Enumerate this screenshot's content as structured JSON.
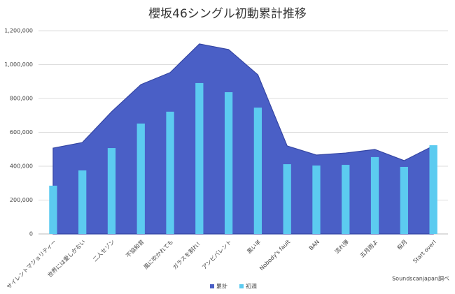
{
  "chart_data": {
    "type": "combo",
    "title": "櫻坂46シングル初動累計推移",
    "categories": [
      "サイレントマジョリティー",
      "世界には愛しかない",
      "二人セゾン",
      "不協和音",
      "風に吹かれても",
      "ガラスを割れ！",
      "アンビバレント",
      "黒い羊",
      "Nobody's fault",
      "BAN",
      "流れ弾",
      "五月雨よ",
      "桜月",
      "Start over!"
    ],
    "series": [
      {
        "name": "累計",
        "type": "area",
        "color": "#4a5fc6",
        "values": [
          507000,
          540000,
          722000,
          882000,
          953000,
          1122000,
          1089000,
          940000,
          520000,
          466000,
          478000,
          499000,
          433000,
          520000
        ]
      },
      {
        "name": "初週",
        "type": "bar",
        "color": "#5ccbf0",
        "values": [
          285000,
          375000,
          507000,
          652000,
          722000,
          891000,
          837000,
          746000,
          412000,
          404000,
          408000,
          454000,
          396000,
          524000
        ]
      }
    ],
    "ylim": [
      0,
      1200000
    ],
    "yticks": [
      0,
      {
        "value": 200000,
        "label": "200,000"
      },
      {
        "value": 400000,
        "label": "400,000"
      },
      {
        "value": 600000,
        "label": "600,000"
      },
      {
        "value": 800000,
        "label": "800,000"
      },
      {
        "value": 1000000,
        "label": "1,000,000"
      },
      {
        "value": 1200000,
        "label": "1,200,000"
      }
    ],
    "grid": true,
    "legend": "bottom",
    "annotation": "Soundscanjapan調べ"
  }
}
